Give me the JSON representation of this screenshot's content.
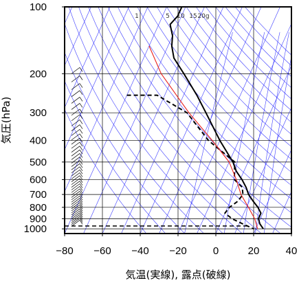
{
  "chart_data": {
    "type": "line",
    "chart_kind": "skew-T log-p sounding diagram",
    "xlabel": "気温(実線), 露点(破線)",
    "ylabel": "気圧(hPa)",
    "xlim": [
      -80,
      40
    ],
    "ylim": [
      1050,
      100
    ],
    "y_scale": "log",
    "x_ticks": [
      -80,
      -60,
      -40,
      -20,
      0,
      20,
      40
    ],
    "y_ticks": [
      100,
      200,
      300,
      400,
      500,
      600,
      700,
      800,
      900,
      1000
    ],
    "grid": true,
    "mixing_ratio_labels": [
      "1",
      "5",
      "10",
      "15",
      "20g"
    ],
    "colors": {
      "temperature": "#000000",
      "dewpoint": "#000000",
      "parcel": "#e8201b",
      "background_lines": "#3b3bff",
      "grid": "#000000"
    },
    "series": [
      {
        "name": "気温",
        "style": "solid",
        "points": [
          [
            100,
            -72
          ],
          [
            110,
            -72
          ],
          [
            120,
            -74
          ],
          [
            135,
            -70
          ],
          [
            150,
            -68
          ],
          [
            170,
            -64
          ],
          [
            200,
            -55
          ],
          [
            250,
            -43
          ],
          [
            300,
            -34
          ],
          [
            400,
            -20
          ],
          [
            500,
            -8
          ],
          [
            550,
            -4
          ],
          [
            600,
            1
          ],
          [
            650,
            5
          ],
          [
            700,
            8
          ],
          [
            750,
            12
          ],
          [
            800,
            16
          ],
          [
            850,
            19
          ],
          [
            900,
            19
          ],
          [
            950,
            21
          ],
          [
            1000,
            24
          ]
        ]
      },
      {
        "name": "露点",
        "style": "dashed",
        "points": [
          [
            250,
            -80
          ],
          [
            250,
            -64
          ],
          [
            300,
            -44
          ],
          [
            400,
            -26
          ],
          [
            450,
            -16
          ],
          [
            500,
            -7
          ],
          [
            550,
            -5
          ],
          [
            600,
            -3
          ],
          [
            650,
            3
          ],
          [
            700,
            5
          ],
          [
            750,
            4
          ],
          [
            800,
            1
          ],
          [
            850,
            0
          ],
          [
            900,
            5
          ],
          [
            950,
            12
          ],
          [
            1000,
            19
          ]
        ]
      },
      {
        "name": "parcel",
        "style": "solid",
        "points": [
          [
            150,
            -80
          ],
          [
            200,
            -67
          ],
          [
            300,
            -43
          ],
          [
            400,
            -24
          ],
          [
            500,
            -10
          ],
          [
            600,
            -2
          ],
          [
            700,
            4
          ],
          [
            800,
            11
          ],
          [
            900,
            17
          ],
          [
            1000,
            21
          ]
        ]
      }
    ]
  }
}
